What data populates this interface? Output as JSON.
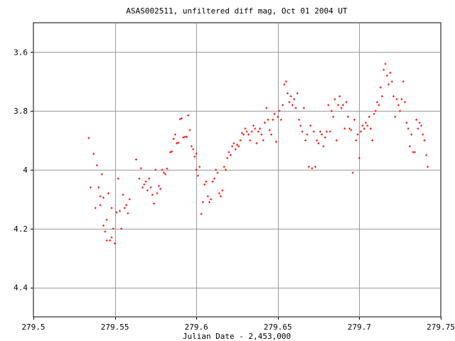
{
  "chart_data": {
    "type": "scatter",
    "title": "ASAS002511, unfiltered diff mag, Oct 01 2004 UT",
    "xlabel": "Julian Date - 2,453,000",
    "ylabel": "",
    "xlim": [
      279.5,
      279.75
    ],
    "ylim": [
      4.5,
      3.5
    ],
    "y_inverted": true,
    "grid": true,
    "x_ticks": [
      279.5,
      279.55,
      279.6,
      279.65,
      279.7,
      279.75
    ],
    "x_tick_labels": [
      "279.5",
      "279.55",
      "279.6",
      "279.65",
      "279.7",
      "279.75"
    ],
    "y_ticks": [
      3.6,
      3.8,
      4.0,
      4.2,
      4.4
    ],
    "y_tick_labels": [
      "3.6",
      "3.8",
      "4",
      "4.2",
      "4.4"
    ],
    "marker_color": "#ff0000",
    "points": [
      [
        279.534,
        3.892
      ],
      [
        279.535,
        4.06
      ],
      [
        279.537,
        3.946
      ],
      [
        279.538,
        4.13
      ],
      [
        279.539,
        3.985
      ],
      [
        279.54,
        4.06
      ],
      [
        279.541,
        4.09
      ],
      [
        279.541,
        4.12
      ],
      [
        279.542,
        4.015
      ],
      [
        279.543,
        4.095
      ],
      [
        279.543,
        4.19
      ],
      [
        279.544,
        4.21
      ],
      [
        279.545,
        4.17
      ],
      [
        279.545,
        4.24
      ],
      [
        279.546,
        4.08
      ],
      [
        279.547,
        4.24
      ],
      [
        279.548,
        4.23
      ],
      [
        279.548,
        4.13
      ],
      [
        279.549,
        4.2
      ],
      [
        279.55,
        4.25
      ],
      [
        279.551,
        4.145
      ],
      [
        279.552,
        4.03
      ],
      [
        279.553,
        4.14
      ],
      [
        279.554,
        4.2
      ],
      [
        279.555,
        4.085
      ],
      [
        279.556,
        4.13
      ],
      [
        279.557,
        4.12
      ],
      [
        279.558,
        4.148
      ],
      [
        279.559,
        4.1
      ],
      [
        279.563,
        3.965
      ],
      [
        279.565,
        4.03
      ],
      [
        279.566,
        3.995
      ],
      [
        279.567,
        4.06
      ],
      [
        279.568,
        4.05
      ],
      [
        279.569,
        4.04
      ],
      [
        279.57,
        4.07
      ],
      [
        279.571,
        4.03
      ],
      [
        279.572,
        4.06
      ],
      [
        279.573,
        4.085
      ],
      [
        279.574,
        4.115
      ],
      [
        279.575,
        4.0
      ],
      [
        279.576,
        4.08
      ],
      [
        279.577,
        4.055
      ],
      [
        279.578,
        4.065
      ],
      [
        279.579,
        4.0
      ],
      [
        279.58,
        4.01
      ],
      [
        279.581,
        4.015
      ],
      [
        279.582,
        3.996
      ],
      [
        279.584,
        3.94
      ],
      [
        279.585,
        3.938
      ],
      [
        279.586,
        3.895
      ],
      [
        279.587,
        3.88
      ],
      [
        279.588,
        3.91
      ],
      [
        279.589,
        3.908
      ],
      [
        279.59,
        3.828
      ],
      [
        279.591,
        3.825
      ],
      [
        279.592,
        3.89
      ],
      [
        279.593,
        3.888
      ],
      [
        279.594,
        3.888
      ],
      [
        279.595,
        3.815
      ],
      [
        279.596,
        3.865
      ],
      [
        279.597,
        3.92
      ],
      [
        279.598,
        3.93
      ],
      [
        279.599,
        3.955
      ],
      [
        279.6,
        3.945
      ],
      [
        279.6,
        4.0
      ],
      [
        279.601,
        4.02
      ],
      [
        279.602,
        3.99
      ],
      [
        279.603,
        4.15
      ],
      [
        279.604,
        4.11
      ],
      [
        279.605,
        4.05
      ],
      [
        279.606,
        4.04
      ],
      [
        279.607,
        4.09
      ],
      [
        279.608,
        4.11
      ],
      [
        279.609,
        4.1
      ],
      [
        279.61,
        4.04
      ],
      [
        279.611,
        4.03
      ],
      [
        279.612,
        4.0
      ],
      [
        279.613,
        4.01
      ],
      [
        279.614,
        4.08
      ],
      [
        279.615,
        4.09
      ],
      [
        279.616,
        4.07
      ],
      [
        279.617,
        3.99
      ],
      [
        279.618,
        4.0
      ],
      [
        279.619,
        3.96
      ],
      [
        279.62,
        3.94
      ],
      [
        279.621,
        3.95
      ],
      [
        279.622,
        3.92
      ],
      [
        279.623,
        3.91
      ],
      [
        279.624,
        3.93
      ],
      [
        279.625,
        3.915
      ],
      [
        279.626,
        3.92
      ],
      [
        279.627,
        3.9
      ],
      [
        279.628,
        3.875
      ],
      [
        279.629,
        3.88
      ],
      [
        279.63,
        3.86
      ],
      [
        279.631,
        3.87
      ],
      [
        279.632,
        3.88
      ],
      [
        279.633,
        3.9
      ],
      [
        279.634,
        3.87
      ],
      [
        279.635,
        3.85
      ],
      [
        279.636,
        3.86
      ],
      [
        279.637,
        3.91
      ],
      [
        279.638,
        3.87
      ],
      [
        279.639,
        3.86
      ],
      [
        279.64,
        3.88
      ],
      [
        279.641,
        3.9
      ],
      [
        279.642,
        3.84
      ],
      [
        279.643,
        3.79
      ],
      [
        279.644,
        3.83
      ],
      [
        279.645,
        3.865
      ],
      [
        279.646,
        3.88
      ],
      [
        279.647,
        3.83
      ],
      [
        279.648,
        3.81
      ],
      [
        279.649,
        3.905
      ],
      [
        279.65,
        3.82
      ],
      [
        279.651,
        3.8
      ],
      [
        279.652,
        3.83
      ],
      [
        279.653,
        3.78
      ],
      [
        279.654,
        3.71
      ],
      [
        279.655,
        3.7
      ],
      [
        279.656,
        3.74
      ],
      [
        279.657,
        3.77
      ],
      [
        279.658,
        3.75
      ],
      [
        279.659,
        3.78
      ],
      [
        279.66,
        3.76
      ],
      [
        279.661,
        3.79
      ],
      [
        279.662,
        3.74
      ],
      [
        279.663,
        3.83
      ],
      [
        279.664,
        3.85
      ],
      [
        279.665,
        3.87
      ],
      [
        279.666,
        3.79
      ],
      [
        279.667,
        3.9
      ],
      [
        279.668,
        3.88
      ],
      [
        279.669,
        3.99
      ],
      [
        279.67,
        3.85
      ],
      [
        279.671,
        3.995
      ],
      [
        279.672,
        3.87
      ],
      [
        279.673,
        3.99
      ],
      [
        279.674,
        3.9
      ],
      [
        279.675,
        3.91
      ],
      [
        279.676,
        3.87
      ],
      [
        279.677,
        3.88
      ],
      [
        279.678,
        3.92
      ],
      [
        279.679,
        3.89
      ],
      [
        279.68,
        3.87
      ],
      [
        279.681,
        3.78
      ],
      [
        279.682,
        3.87
      ],
      [
        279.683,
        3.8
      ],
      [
        279.684,
        3.82
      ],
      [
        279.685,
        3.76
      ],
      [
        279.686,
        3.9
      ],
      [
        279.687,
        3.78
      ],
      [
        279.688,
        3.75
      ],
      [
        279.689,
        3.79
      ],
      [
        279.69,
        3.78
      ],
      [
        279.691,
        3.86
      ],
      [
        279.692,
        3.77
      ],
      [
        279.693,
        3.82
      ],
      [
        279.694,
        3.86
      ],
      [
        279.695,
        3.865
      ],
      [
        279.696,
        4.01
      ],
      [
        279.697,
        3.83
      ],
      [
        279.698,
        3.9
      ],
      [
        279.699,
        3.88
      ],
      [
        279.7,
        3.96
      ],
      [
        279.701,
        3.87
      ],
      [
        279.702,
        3.85
      ],
      [
        279.703,
        3.86
      ],
      [
        279.704,
        3.84
      ],
      [
        279.705,
        3.85
      ],
      [
        279.706,
        3.82
      ],
      [
        279.707,
        3.86
      ],
      [
        279.708,
        3.9
      ],
      [
        279.709,
        3.81
      ],
      [
        279.71,
        3.8
      ],
      [
        279.711,
        3.77
      ],
      [
        279.712,
        3.78
      ],
      [
        279.713,
        3.72
      ],
      [
        279.714,
        3.75
      ],
      [
        279.715,
        3.66
      ],
      [
        279.716,
        3.64
      ],
      [
        279.717,
        3.68
      ],
      [
        279.718,
        3.71
      ],
      [
        279.719,
        3.67
      ],
      [
        279.72,
        3.7
      ],
      [
        279.721,
        3.75
      ],
      [
        279.722,
        3.82
      ],
      [
        279.723,
        3.76
      ],
      [
        279.724,
        3.78
      ],
      [
        279.725,
        3.8
      ],
      [
        279.726,
        3.76
      ],
      [
        279.727,
        3.7
      ],
      [
        279.728,
        3.77
      ],
      [
        279.729,
        3.84
      ],
      [
        279.73,
        3.86
      ],
      [
        279.731,
        3.92
      ],
      [
        279.732,
        3.88
      ],
      [
        279.733,
        3.94
      ],
      [
        279.734,
        3.94
      ],
      [
        279.735,
        3.83
      ],
      [
        279.736,
        3.86
      ],
      [
        279.737,
        3.84
      ],
      [
        279.738,
        3.85
      ],
      [
        279.739,
        3.88
      ],
      [
        279.74,
        3.9
      ],
      [
        279.741,
        3.95
      ],
      [
        279.742,
        3.99
      ]
    ]
  }
}
